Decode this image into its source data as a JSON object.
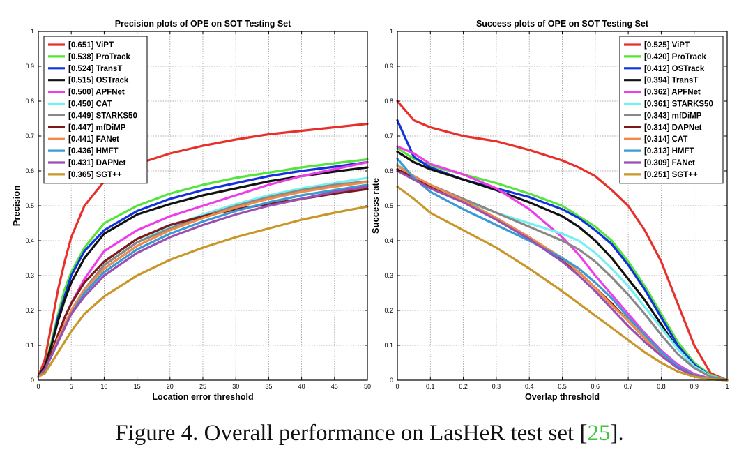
{
  "chart_data": [
    {
      "type": "line",
      "title": "Precision plots of OPE on SOT Testing Set",
      "xlabel": "Location error threshold",
      "ylabel": "Precision",
      "xlim": [
        0,
        50
      ],
      "ylim": [
        0,
        1
      ],
      "xticks": [
        0,
        5,
        10,
        15,
        20,
        25,
        30,
        35,
        40,
        45,
        50
      ],
      "yticks": [
        0,
        0.1,
        0.2,
        0.3,
        0.4,
        0.5,
        0.6,
        0.7,
        0.8,
        0.9,
        1
      ],
      "grid": true,
      "legend_position": "top-left",
      "x": [
        0,
        1,
        2,
        3,
        4,
        5,
        7,
        10,
        15,
        20,
        25,
        30,
        35,
        40,
        45,
        50
      ],
      "series": [
        {
          "name": "[0.651] ViPT",
          "color": "#e8302a",
          "values": [
            0.01,
            0.06,
            0.16,
            0.26,
            0.34,
            0.41,
            0.5,
            0.57,
            0.62,
            0.65,
            0.672,
            0.69,
            0.705,
            0.715,
            0.725,
            0.735
          ]
        },
        {
          "name": "[0.538] ProTrack",
          "color": "#55e43a",
          "values": [
            0.01,
            0.04,
            0.11,
            0.19,
            0.26,
            0.31,
            0.38,
            0.45,
            0.5,
            0.535,
            0.56,
            0.58,
            0.595,
            0.61,
            0.622,
            0.633
          ]
        },
        {
          "name": "[0.524] TransT",
          "color": "#1232e0",
          "values": [
            0.01,
            0.04,
            0.1,
            0.18,
            0.24,
            0.3,
            0.37,
            0.43,
            0.485,
            0.52,
            0.545,
            0.565,
            0.585,
            0.6,
            0.612,
            0.625
          ]
        },
        {
          "name": "[0.515] OSTrack",
          "color": "#111111",
          "values": [
            0.01,
            0.04,
            0.1,
            0.17,
            0.23,
            0.28,
            0.35,
            0.42,
            0.475,
            0.505,
            0.53,
            0.55,
            0.57,
            0.585,
            0.598,
            0.61
          ]
        },
        {
          "name": "[0.500] APFNet",
          "color": "#ee3ee8",
          "values": [
            0.01,
            0.03,
            0.08,
            0.13,
            0.18,
            0.22,
            0.29,
            0.37,
            0.43,
            0.47,
            0.5,
            0.53,
            0.56,
            0.585,
            0.605,
            0.625
          ]
        },
        {
          "name": "[0.450] CAT",
          "color": "#72f0f2",
          "values": [
            0.01,
            0.03,
            0.07,
            0.12,
            0.16,
            0.2,
            0.26,
            0.33,
            0.395,
            0.44,
            0.475,
            0.505,
            0.53,
            0.55,
            0.565,
            0.58
          ]
        },
        {
          "name": "[0.449] STARKS50",
          "color": "#888888",
          "values": [
            0.01,
            0.03,
            0.07,
            0.12,
            0.16,
            0.2,
            0.26,
            0.33,
            0.395,
            0.435,
            0.47,
            0.5,
            0.525,
            0.545,
            0.56,
            0.57
          ]
        },
        {
          "name": "[0.447] mfDiMP",
          "color": "#7a1a1a",
          "values": [
            0.01,
            0.03,
            0.08,
            0.13,
            0.18,
            0.22,
            0.28,
            0.34,
            0.405,
            0.445,
            0.47,
            0.49,
            0.505,
            0.52,
            0.535,
            0.548
          ]
        },
        {
          "name": "[0.441] FANet",
          "color": "#f08a4a",
          "values": [
            0.01,
            0.03,
            0.07,
            0.12,
            0.16,
            0.2,
            0.26,
            0.32,
            0.385,
            0.43,
            0.465,
            0.495,
            0.52,
            0.54,
            0.555,
            0.568
          ]
        },
        {
          "name": "[0.436] HMFT",
          "color": "#3a9ad6",
          "values": [
            0.01,
            0.03,
            0.07,
            0.11,
            0.15,
            0.19,
            0.25,
            0.31,
            0.375,
            0.42,
            0.455,
            0.485,
            0.51,
            0.53,
            0.545,
            0.56
          ]
        },
        {
          "name": "[0.431] DAPNet",
          "color": "#9b4fb0",
          "values": [
            0.01,
            0.03,
            0.07,
            0.11,
            0.15,
            0.19,
            0.24,
            0.3,
            0.365,
            0.41,
            0.445,
            0.475,
            0.5,
            0.52,
            0.54,
            0.555
          ]
        },
        {
          "name": "[0.365] SGT++",
          "color": "#c9962a",
          "values": [
            0.01,
            0.02,
            0.05,
            0.08,
            0.11,
            0.14,
            0.19,
            0.24,
            0.3,
            0.345,
            0.38,
            0.41,
            0.435,
            0.46,
            0.48,
            0.498
          ]
        }
      ]
    },
    {
      "type": "line",
      "title": "Success plots of OPE on SOT Testing Set",
      "xlabel": "Overlap threshold",
      "ylabel": "Success rate",
      "xlim": [
        0,
        1
      ],
      "ylim": [
        0,
        1
      ],
      "xticks": [
        0,
        0.1,
        0.2,
        0.3,
        0.4,
        0.5,
        0.6,
        0.7,
        0.8,
        0.9,
        1
      ],
      "yticks": [
        0,
        0.1,
        0.2,
        0.3,
        0.4,
        0.5,
        0.6,
        0.7,
        0.8,
        0.9,
        1
      ],
      "grid": true,
      "legend_position": "top-right",
      "x": [
        0,
        0.05,
        0.1,
        0.2,
        0.3,
        0.4,
        0.5,
        0.55,
        0.6,
        0.65,
        0.7,
        0.75,
        0.8,
        0.85,
        0.9,
        0.95,
        1
      ],
      "series": [
        {
          "name": "[0.525] ViPT",
          "color": "#e8302a",
          "values": [
            0.8,
            0.745,
            0.725,
            0.7,
            0.685,
            0.66,
            0.63,
            0.61,
            0.585,
            0.545,
            0.5,
            0.43,
            0.34,
            0.22,
            0.1,
            0.02,
            0.0
          ]
        },
        {
          "name": "[0.420] ProTrack",
          "color": "#55e43a",
          "values": [
            0.665,
            0.635,
            0.615,
            0.59,
            0.565,
            0.535,
            0.5,
            0.47,
            0.44,
            0.4,
            0.34,
            0.27,
            0.19,
            0.11,
            0.05,
            0.015,
            0.0
          ]
        },
        {
          "name": "[0.412] OSTrack",
          "color": "#1232e0",
          "values": [
            0.745,
            0.64,
            0.61,
            0.575,
            0.55,
            0.525,
            0.49,
            0.465,
            0.43,
            0.39,
            0.33,
            0.26,
            0.18,
            0.1,
            0.045,
            0.012,
            0.0
          ]
        },
        {
          "name": "[0.394] TransT",
          "color": "#111111",
          "values": [
            0.655,
            0.625,
            0.605,
            0.575,
            0.545,
            0.51,
            0.47,
            0.44,
            0.4,
            0.35,
            0.29,
            0.23,
            0.16,
            0.09,
            0.04,
            0.01,
            0.0
          ]
        },
        {
          "name": "[0.362] APFNet",
          "color": "#ee3ee8",
          "values": [
            0.67,
            0.65,
            0.62,
            0.59,
            0.55,
            0.49,
            0.41,
            0.36,
            0.3,
            0.245,
            0.19,
            0.135,
            0.085,
            0.045,
            0.018,
            0.005,
            0.0
          ]
        },
        {
          "name": "[0.361] STARKS50",
          "color": "#72f0f2",
          "values": [
            0.62,
            0.58,
            0.55,
            0.515,
            0.48,
            0.45,
            0.42,
            0.4,
            0.365,
            0.32,
            0.27,
            0.21,
            0.15,
            0.09,
            0.04,
            0.012,
            0.0
          ]
        },
        {
          "name": "[0.343] mfDiMP",
          "color": "#888888",
          "values": [
            0.615,
            0.585,
            0.56,
            0.52,
            0.48,
            0.44,
            0.4,
            0.375,
            0.34,
            0.295,
            0.245,
            0.19,
            0.13,
            0.075,
            0.035,
            0.01,
            0.0
          ]
        },
        {
          "name": "[0.314] DAPNet",
          "color": "#7a1a1a",
          "values": [
            0.605,
            0.58,
            0.555,
            0.515,
            0.465,
            0.41,
            0.345,
            0.31,
            0.265,
            0.22,
            0.17,
            0.12,
            0.075,
            0.04,
            0.015,
            0.004,
            0.0
          ]
        },
        {
          "name": "[0.314] CAT",
          "color": "#f08a4a",
          "values": [
            0.615,
            0.585,
            0.56,
            0.515,
            0.465,
            0.41,
            0.35,
            0.31,
            0.265,
            0.215,
            0.17,
            0.12,
            0.075,
            0.04,
            0.015,
            0.004,
            0.0
          ]
        },
        {
          "name": "[0.313] HMFT",
          "color": "#3a9ad6",
          "values": [
            0.635,
            0.58,
            0.54,
            0.49,
            0.445,
            0.4,
            0.35,
            0.32,
            0.28,
            0.235,
            0.18,
            0.13,
            0.08,
            0.04,
            0.015,
            0.004,
            0.0
          ]
        },
        {
          "name": "[0.309] FANet",
          "color": "#9b4fb0",
          "values": [
            0.6,
            0.575,
            0.55,
            0.51,
            0.46,
            0.405,
            0.34,
            0.3,
            0.255,
            0.205,
            0.155,
            0.11,
            0.07,
            0.035,
            0.013,
            0.003,
            0.0
          ]
        },
        {
          "name": "[0.251] SGT++",
          "color": "#c9962a",
          "values": [
            0.555,
            0.52,
            0.48,
            0.43,
            0.38,
            0.32,
            0.255,
            0.22,
            0.185,
            0.15,
            0.115,
            0.08,
            0.05,
            0.025,
            0.01,
            0.003,
            0.0
          ]
        }
      ]
    }
  ],
  "caption": {
    "text": "Figure 4. Overall performance on LasHeR test set [",
    "cite": "25",
    "suffix": "]."
  }
}
